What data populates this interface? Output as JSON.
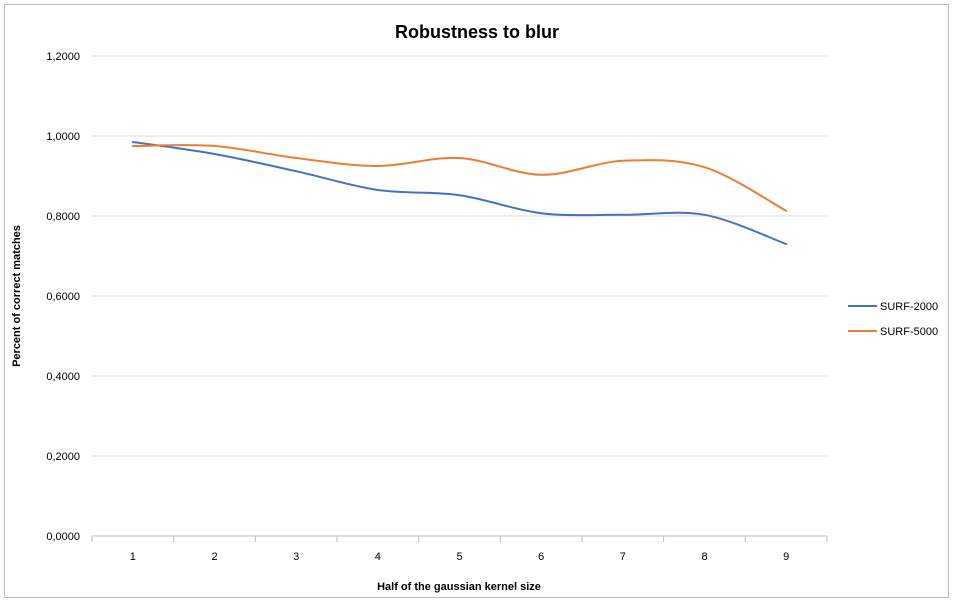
{
  "chart_data": {
    "type": "line",
    "title": "Robustness to blur",
    "xlabel": "Half of the gaussian kernel size",
    "ylabel": "Percent of correct matches",
    "categories": [
      "1",
      "2",
      "3",
      "4",
      "5",
      "6",
      "7",
      "8",
      "9"
    ],
    "y_tick_labels": [
      "0,0000",
      "0,2000",
      "0,4000",
      "0,6000",
      "0,8000",
      "1,0000",
      "1,2000"
    ],
    "ylim": [
      0,
      1.2
    ],
    "grid": true,
    "legend_position": "right",
    "smooth": true,
    "series": [
      {
        "name": "SURF-2000",
        "color": "#4472C4",
        "values": [
          0.985,
          0.955,
          0.912,
          0.865,
          0.852,
          0.807,
          0.803,
          0.803,
          0.73
        ]
      },
      {
        "name": "SURF-5000",
        "color": "#ED7D31",
        "values": [
          0.975,
          0.975,
          0.945,
          0.925,
          0.945,
          0.903,
          0.938,
          0.922,
          0.813
        ]
      }
    ]
  }
}
